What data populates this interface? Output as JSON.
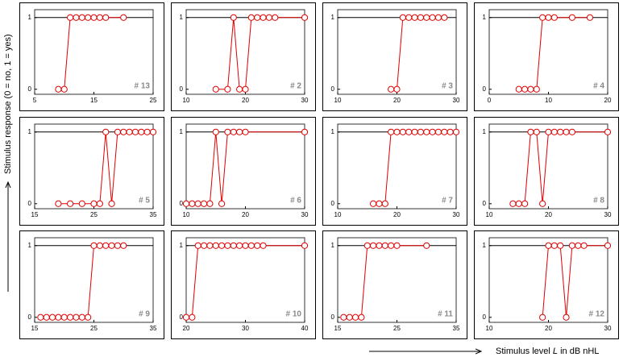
{
  "y_axis_label": "Stimulus response (0 = no, 1 = yes)",
  "x_axis_label": [
    "Stimulus level ",
    "L",
    " in dB nHL"
  ],
  "chart_data": [
    {
      "type": "line",
      "label": "# 13",
      "x": [
        9,
        10,
        11,
        12,
        13,
        14,
        15,
        16,
        17,
        20
      ],
      "series": [
        {
          "color": "#e00000",
          "values": [
            0,
            0,
            1,
            1,
            1,
            1,
            1,
            1,
            1,
            1
          ]
        }
      ],
      "xlim": [
        5,
        25
      ],
      "xticks": [
        5,
        15,
        25
      ],
      "ylim": [
        -0.07,
        1.11
      ],
      "yticks": [
        0,
        1
      ],
      "hline": 1
    },
    {
      "type": "line",
      "label": "# 2",
      "x": [
        15,
        17,
        18,
        19,
        20,
        21,
        22,
        23,
        24,
        25,
        30
      ],
      "series": [
        {
          "color": "#e00000",
          "values": [
            0,
            0,
            1,
            0,
            0,
            1,
            1,
            1,
            1,
            1,
            1
          ]
        }
      ],
      "xlim": [
        10,
        30
      ],
      "xticks": [
        10,
        20,
        30
      ],
      "ylim": [
        -0.07,
        1.11
      ],
      "yticks": [
        0,
        1
      ],
      "hline": 1
    },
    {
      "type": "line",
      "label": "# 3",
      "x": [
        19,
        20,
        21,
        22,
        23,
        24,
        25,
        26,
        27,
        28
      ],
      "series": [
        {
          "color": "#e00000",
          "values": [
            0,
            0,
            1,
            1,
            1,
            1,
            1,
            1,
            1,
            1
          ]
        }
      ],
      "xlim": [
        10,
        30
      ],
      "xticks": [
        10,
        20,
        30
      ],
      "ylim": [
        -0.07,
        1.11
      ],
      "yticks": [
        0,
        1
      ],
      "hline": 1
    },
    {
      "type": "line",
      "label": "# 4",
      "x": [
        5,
        6,
        7,
        8,
        9,
        10,
        11,
        14,
        17
      ],
      "series": [
        {
          "color": "#e00000",
          "values": [
            0,
            0,
            0,
            0,
            1,
            1,
            1,
            1,
            1
          ]
        }
      ],
      "xlim": [
        0,
        20
      ],
      "xticks": [
        0,
        10,
        20
      ],
      "ylim": [
        -0.07,
        1.11
      ],
      "yticks": [
        0,
        1
      ],
      "hline": 1
    },
    {
      "type": "line",
      "label": "# 5",
      "x": [
        19,
        21,
        23,
        25,
        26,
        27,
        28,
        29,
        30,
        31,
        32,
        33,
        34,
        35
      ],
      "series": [
        {
          "color": "#e00000",
          "values": [
            0,
            0,
            0,
            0,
            0,
            1,
            0,
            1,
            1,
            1,
            1,
            1,
            1,
            1
          ]
        }
      ],
      "xlim": [
        15,
        35
      ],
      "xticks": [
        15,
        25,
        35
      ],
      "ylim": [
        -0.07,
        1.11
      ],
      "yticks": [
        0,
        1
      ],
      "hline": 1
    },
    {
      "type": "line",
      "label": "# 6",
      "x": [
        10,
        11,
        12,
        13,
        14,
        15,
        16,
        17,
        18,
        19,
        20,
        30
      ],
      "series": [
        {
          "color": "#e00000",
          "values": [
            0,
            0,
            0,
            0,
            0,
            1,
            0,
            1,
            1,
            1,
            1,
            1
          ]
        }
      ],
      "xlim": [
        10,
        30
      ],
      "xticks": [
        10,
        20,
        30
      ],
      "ylim": [
        -0.07,
        1.11
      ],
      "yticks": [
        0,
        1
      ],
      "hline": 1
    },
    {
      "type": "line",
      "label": "# 7",
      "x": [
        16,
        17,
        18,
        19,
        20,
        21,
        22,
        23,
        24,
        25,
        26,
        27,
        28,
        29,
        30
      ],
      "series": [
        {
          "color": "#e00000",
          "values": [
            0,
            0,
            0,
            1,
            1,
            1,
            1,
            1,
            1,
            1,
            1,
            1,
            1,
            1,
            1
          ]
        }
      ],
      "xlim": [
        10,
        30
      ],
      "xticks": [
        10,
        20,
        30
      ],
      "ylim": [
        -0.07,
        1.11
      ],
      "yticks": [
        0,
        1
      ],
      "hline": 1
    },
    {
      "type": "line",
      "label": "# 8",
      "x": [
        14,
        15,
        16,
        17,
        18,
        19,
        20,
        21,
        22,
        23,
        24,
        30
      ],
      "series": [
        {
          "color": "#e00000",
          "values": [
            0,
            0,
            0,
            1,
            1,
            0,
            1,
            1,
            1,
            1,
            1,
            1
          ]
        }
      ],
      "xlim": [
        10,
        30
      ],
      "xticks": [
        10,
        20,
        30
      ],
      "ylim": [
        -0.07,
        1.11
      ],
      "yticks": [
        0,
        1
      ],
      "hline": 1
    },
    {
      "type": "line",
      "label": "# 9",
      "x": [
        16,
        17,
        18,
        19,
        20,
        21,
        22,
        23,
        24,
        25,
        26,
        27,
        28,
        29,
        30
      ],
      "series": [
        {
          "color": "#e00000",
          "values": [
            0,
            0,
            0,
            0,
            0,
            0,
            0,
            0,
            0,
            1,
            1,
            1,
            1,
            1,
            1
          ]
        }
      ],
      "xlim": [
        15,
        35
      ],
      "xticks": [
        15,
        25,
        35
      ],
      "ylim": [
        -0.07,
        1.11
      ],
      "yticks": [
        0,
        1
      ],
      "hline": 1
    },
    {
      "type": "line",
      "label": "# 10",
      "x": [
        20,
        21,
        22,
        23,
        24,
        25,
        26,
        27,
        28,
        29,
        30,
        31,
        32,
        33,
        40
      ],
      "series": [
        {
          "color": "#e00000",
          "values": [
            0,
            0,
            1,
            1,
            1,
            1,
            1,
            1,
            1,
            1,
            1,
            1,
            1,
            1,
            1
          ]
        }
      ],
      "xlim": [
        20,
        40
      ],
      "xticks": [
        20,
        30,
        40
      ],
      "ylim": [
        -0.07,
        1.11
      ],
      "yticks": [
        0,
        1
      ],
      "hline": 1
    },
    {
      "type": "line",
      "label": "# 11",
      "x": [
        16,
        17,
        18,
        19,
        20,
        21,
        22,
        23,
        24,
        25,
        30
      ],
      "series": [
        {
          "color": "#e00000",
          "values": [
            0,
            0,
            0,
            0,
            1,
            1,
            1,
            1,
            1,
            1,
            1
          ]
        }
      ],
      "xlim": [
        15,
        35
      ],
      "xticks": [
        15,
        25,
        35
      ],
      "ylim": [
        -0.07,
        1.11
      ],
      "yticks": [
        0,
        1
      ],
      "hline": 1
    },
    {
      "type": "line",
      "label": "# 12",
      "x": [
        19,
        20,
        21,
        22,
        23,
        24,
        25,
        26,
        30
      ],
      "series": [
        {
          "color": "#e00000",
          "values": [
            0,
            1,
            1,
            1,
            0,
            1,
            1,
            1,
            1
          ]
        }
      ],
      "xlim": [
        10,
        30
      ],
      "xticks": [
        10,
        20,
        30
      ],
      "ylim": [
        -0.07,
        1.11
      ],
      "yticks": [
        0,
        1
      ],
      "hline": 1
    }
  ]
}
